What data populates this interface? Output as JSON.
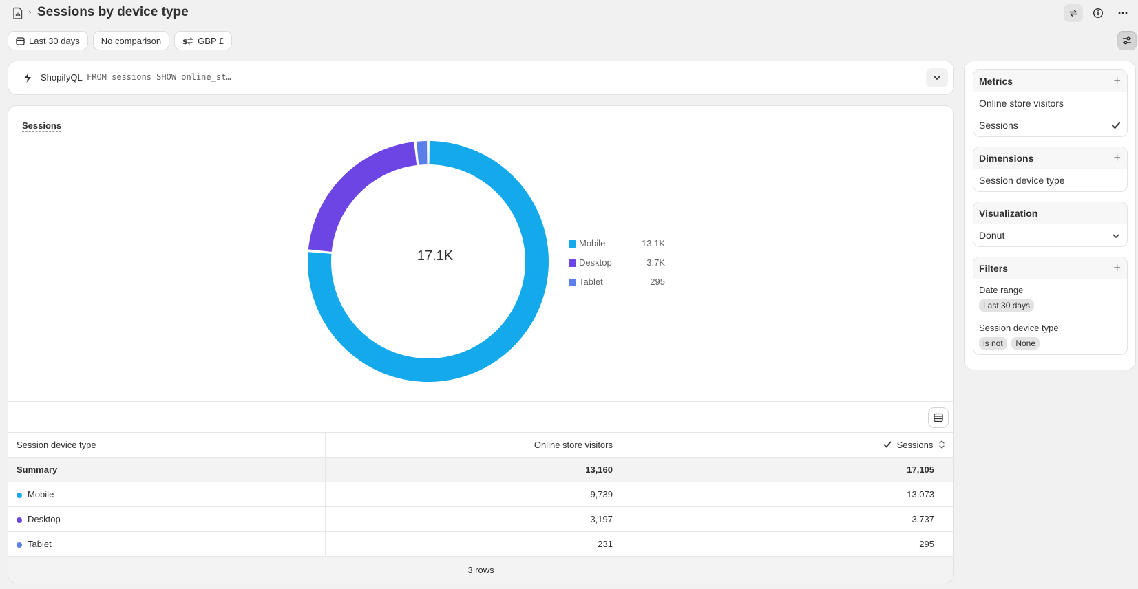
{
  "header": {
    "title": "Sessions by device type",
    "breadcrumb_separator": "›"
  },
  "filters": {
    "date_range": "Last 30 days",
    "comparison": "No comparison",
    "currency": "GBP £"
  },
  "query": {
    "label": "ShopifyQL",
    "code": "FROM sessions SHOW online_st…"
  },
  "chart": {
    "title": "Sessions",
    "center_value": "17.1K"
  },
  "chart_data": {
    "type": "pie",
    "title": "Sessions",
    "categories": [
      "Mobile",
      "Desktop",
      "Tablet"
    ],
    "values": [
      13073,
      3737,
      295
    ],
    "display_values": [
      "13.1K",
      "3.7K",
      "295"
    ],
    "colors": [
      "#13a9eb",
      "#6d45e4",
      "#5b7fe8"
    ],
    "total_label": "17.1K",
    "legend_position": "right"
  },
  "table": {
    "headers": {
      "dimension": "Session device type",
      "visitors": "Online store visitors",
      "sessions": "Sessions"
    },
    "summary": {
      "label": "Summary",
      "visitors": "13,160",
      "sessions": "17,105"
    },
    "rows": [
      {
        "label": "Mobile",
        "visitors": "9,739",
        "sessions": "13,073",
        "color": "#13a9eb"
      },
      {
        "label": "Desktop",
        "visitors": "3,197",
        "sessions": "3,737",
        "color": "#6d45e4"
      },
      {
        "label": "Tablet",
        "visitors": "231",
        "sessions": "295",
        "color": "#5b7fe8"
      }
    ],
    "footer": "3 rows"
  },
  "sidebar": {
    "metrics": {
      "title": "Metrics",
      "items": [
        {
          "label": "Online store visitors"
        },
        {
          "label": "Sessions"
        }
      ]
    },
    "dimensions": {
      "title": "Dimensions",
      "items": [
        {
          "label": "Session device type"
        }
      ]
    },
    "visualization": {
      "title": "Visualization",
      "selected": "Donut"
    },
    "filters": {
      "title": "Filters",
      "date_range": {
        "label": "Date range",
        "value": "Last 30 days"
      },
      "device": {
        "label": "Session device type",
        "operator": "is not",
        "value": "None"
      }
    }
  }
}
